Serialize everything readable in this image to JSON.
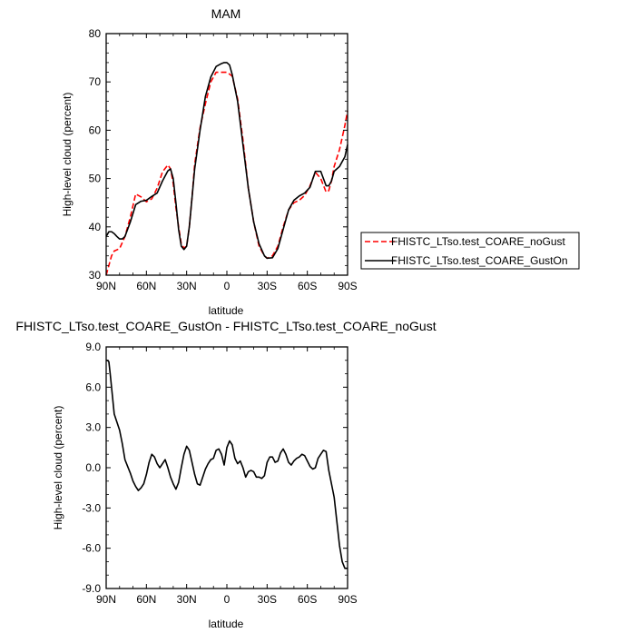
{
  "chart_data": [
    {
      "type": "line",
      "title": "MAM",
      "xlabel": "latitude",
      "ylabel": "High-level cloud (percent)",
      "xlim": [
        90,
        -90
      ],
      "ylim": [
        30,
        80
      ],
      "xticks": [
        {
          "value": 90,
          "label": "90N"
        },
        {
          "value": 60,
          "label": "60N"
        },
        {
          "value": 30,
          "label": "30N"
        },
        {
          "value": 0,
          "label": "0"
        },
        {
          "value": -30,
          "label": "30S"
        },
        {
          "value": -60,
          "label": "60S"
        },
        {
          "value": -90,
          "label": "90S"
        }
      ],
      "yticks": [
        30,
        40,
        50,
        60,
        70,
        80
      ],
      "legend_position": "right",
      "series": [
        {
          "name": "FHISTC_LTso.test_COARE_noGust",
          "color": "#ff0000",
          "dash": "dashed",
          "x": [
            90,
            86,
            84,
            80,
            76,
            72,
            68,
            64,
            60,
            56,
            52,
            48,
            44,
            42,
            40,
            38,
            36,
            34,
            32,
            30,
            28,
            26,
            24,
            20,
            16,
            12,
            8,
            4,
            0,
            -4,
            -8,
            -12,
            -16,
            -20,
            -24,
            -28,
            -30,
            -34,
            -38,
            -42,
            -46,
            -50,
            -54,
            -58,
            -62,
            -66,
            -70,
            -74,
            -76,
            -78,
            -80,
            -84,
            -88,
            -90
          ],
          "y": [
            30,
            34,
            35,
            35.5,
            38,
            42,
            46.8,
            46.2,
            45.2,
            45.8,
            48,
            51.4,
            52.8,
            52,
            49,
            44,
            40,
            36.5,
            35.6,
            36,
            40,
            46,
            53,
            60.5,
            65.5,
            70,
            72,
            72,
            72,
            71.2,
            66.5,
            58,
            48,
            41,
            36,
            34,
            33.5,
            34,
            36,
            40,
            43.5,
            45,
            45.5,
            46.5,
            48.5,
            51.3,
            50,
            47.2,
            47.5,
            49.5,
            52.5,
            56,
            61,
            64
          ]
        },
        {
          "name": "FHISTC_LTso.test_COARE_GustOn",
          "color": "#000000",
          "dash": "solid",
          "x": [
            90,
            88,
            86,
            84,
            82,
            80,
            78,
            76,
            72,
            68,
            64,
            60,
            56,
            52,
            48,
            44,
            42,
            40,
            38,
            36,
            34,
            32,
            30,
            28,
            26,
            24,
            20,
            16,
            12,
            8,
            4,
            2,
            0,
            -2,
            -4,
            -8,
            -12,
            -16,
            -20,
            -24,
            -28,
            -30,
            -34,
            -38,
            -42,
            -46,
            -50,
            -54,
            -58,
            -62,
            -66,
            -70,
            -72,
            -74,
            -76,
            -78,
            -80,
            -84,
            -88,
            -90
          ],
          "y": [
            38,
            39,
            39,
            38.6,
            38,
            37.5,
            37.5,
            38,
            41,
            44.6,
            45.3,
            45.5,
            46.3,
            47,
            49.5,
            51.6,
            52,
            50,
            45,
            39.5,
            36,
            35.3,
            36,
            40,
            46,
            52,
            60,
            67,
            71,
            73.2,
            73.8,
            74,
            74,
            73.5,
            71.5,
            66,
            57,
            48,
            41,
            36.5,
            34,
            33.5,
            33.6,
            35.5,
            39.5,
            43.5,
            45.5,
            46.4,
            47,
            48.2,
            51.5,
            51.5,
            50,
            48.5,
            48.5,
            49.5,
            51.5,
            52.5,
            54.5,
            57
          ]
        }
      ]
    },
    {
      "type": "line",
      "title": "FHISTC_LTso.test_COARE_GustOn - FHISTC_LTso.test_COARE_noGust",
      "xlabel": "latitude",
      "ylabel": "High-level cloud (percent)",
      "xlim": [
        90,
        -90
      ],
      "ylim": [
        -9,
        9
      ],
      "xticks": [
        {
          "value": 90,
          "label": "90N"
        },
        {
          "value": 60,
          "label": "60N"
        },
        {
          "value": 30,
          "label": "30N"
        },
        {
          "value": 0,
          "label": "0"
        },
        {
          "value": -30,
          "label": "30S"
        },
        {
          "value": -60,
          "label": "60S"
        },
        {
          "value": -90,
          "label": "90S"
        }
      ],
      "yticks": [
        {
          "value": 9,
          "label": "9.0"
        },
        {
          "value": 6,
          "label": "6.0"
        },
        {
          "value": 3,
          "label": "3.0"
        },
        {
          "value": 0,
          "label": "0.0"
        },
        {
          "value": -3,
          "label": "-3.0"
        },
        {
          "value": -6,
          "label": "-6.0"
        },
        {
          "value": -9,
          "label": "-9.0"
        }
      ],
      "series": [
        {
          "color": "#000000",
          "dash": "solid",
          "x": [
            90,
            89,
            88,
            87,
            86,
            84,
            82,
            80,
            78,
            76,
            74,
            72,
            70,
            68,
            66,
            64,
            62,
            60,
            58,
            56,
            54,
            52,
            50,
            48,
            46,
            44,
            42,
            40,
            38,
            36,
            34,
            32,
            30,
            28,
            26,
            24,
            22,
            20,
            18,
            16,
            14,
            12,
            10,
            8,
            6,
            4,
            2,
            0,
            -2,
            -4,
            -6,
            -8,
            -10,
            -12,
            -14,
            -16,
            -18,
            -20,
            -22,
            -24,
            -26,
            -28,
            -30,
            -32,
            -34,
            -36,
            -38,
            -40,
            -42,
            -44,
            -46,
            -48,
            -50,
            -52,
            -54,
            -56,
            -58,
            -60,
            -62,
            -64,
            -66,
            -68,
            -70,
            -72,
            -74,
            -76,
            -78,
            -80,
            -82,
            -84,
            -86,
            -88,
            -89,
            -90
          ],
          "y": [
            8,
            8,
            7.9,
            7,
            6,
            4,
            3.4,
            2.8,
            1.8,
            0.6,
            0.1,
            -0.4,
            -1,
            -1.4,
            -1.7,
            -1.5,
            -1.2,
            -0.5,
            0.4,
            1,
            0.8,
            0.3,
            0,
            0.3,
            0.6,
            0,
            -0.7,
            -1.2,
            -1.6,
            -1.1,
            0,
            1,
            1.6,
            1.3,
            0.4,
            -0.5,
            -1.2,
            -1.3,
            -0.7,
            -0.1,
            0.3,
            0.6,
            0.7,
            1.3,
            1.4,
            1,
            0.2,
            1.5,
            2,
            1.7,
            0.7,
            0.3,
            0.5,
            0,
            -0.7,
            -0.3,
            -0.2,
            -0.3,
            -0.7,
            -0.7,
            -0.8,
            -0.6,
            0.4,
            0.8,
            0.8,
            0.4,
            0.5,
            1.1,
            1.4,
            1,
            0.4,
            0.2,
            0.5,
            0.7,
            0.8,
            1,
            0.9,
            0.5,
            0.1,
            -0.1,
            0,
            0.7,
            1,
            1.3,
            1.2,
            -0.2,
            -1.2,
            -2.2,
            -4,
            -5.8,
            -7,
            -7.5,
            -7.5,
            -7.5
          ]
        }
      ]
    }
  ]
}
